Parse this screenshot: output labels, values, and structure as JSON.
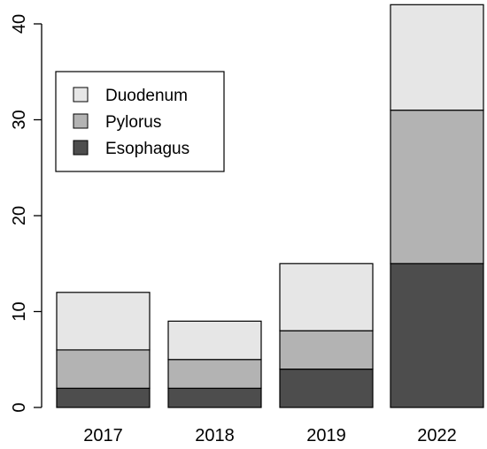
{
  "chart_data": {
    "type": "bar",
    "stacked": true,
    "categories": [
      "2017",
      "2018",
      "2019",
      "2022"
    ],
    "series": [
      {
        "name": "Esophagus",
        "values": [
          2,
          2,
          4,
          15
        ],
        "color": "#4d4d4d"
      },
      {
        "name": "Pylorus",
        "values": [
          4,
          3,
          4,
          16
        ],
        "color": "#b3b3b3"
      },
      {
        "name": "Duodenum",
        "values": [
          6,
          4,
          7,
          11
        ],
        "color": "#e6e6e6"
      }
    ],
    "ylim": [
      0,
      42
    ],
    "yticks": [
      0,
      10,
      20,
      30,
      40
    ],
    "legend": {
      "position": "top-left",
      "order": [
        "Duodenum",
        "Pylorus",
        "Esophagus"
      ]
    },
    "grid": false
  }
}
